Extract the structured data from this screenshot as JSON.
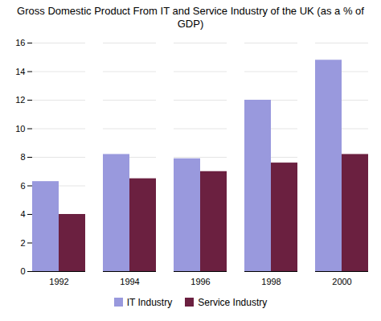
{
  "chart_data": {
    "type": "bar",
    "title": "Gross Domestic Product From IT and Service Industry of the UK (as a % of\nGDP)",
    "categories": [
      "1992",
      "1994",
      "1996",
      "1998",
      "2000"
    ],
    "series": [
      {
        "name": "IT Industry",
        "color": "#9999dd",
        "values": [
          6.3,
          8.2,
          7.9,
          12.0,
          14.8
        ]
      },
      {
        "name": "Service Industry",
        "color": "#6b2040",
        "values": [
          4.0,
          6.5,
          7.0,
          7.6,
          8.2
        ]
      }
    ],
    "ylim": [
      0,
      16
    ],
    "yticks": [
      0,
      2,
      4,
      6,
      8,
      10,
      12,
      14,
      16
    ],
    "grid": true,
    "legend": "bottom"
  }
}
